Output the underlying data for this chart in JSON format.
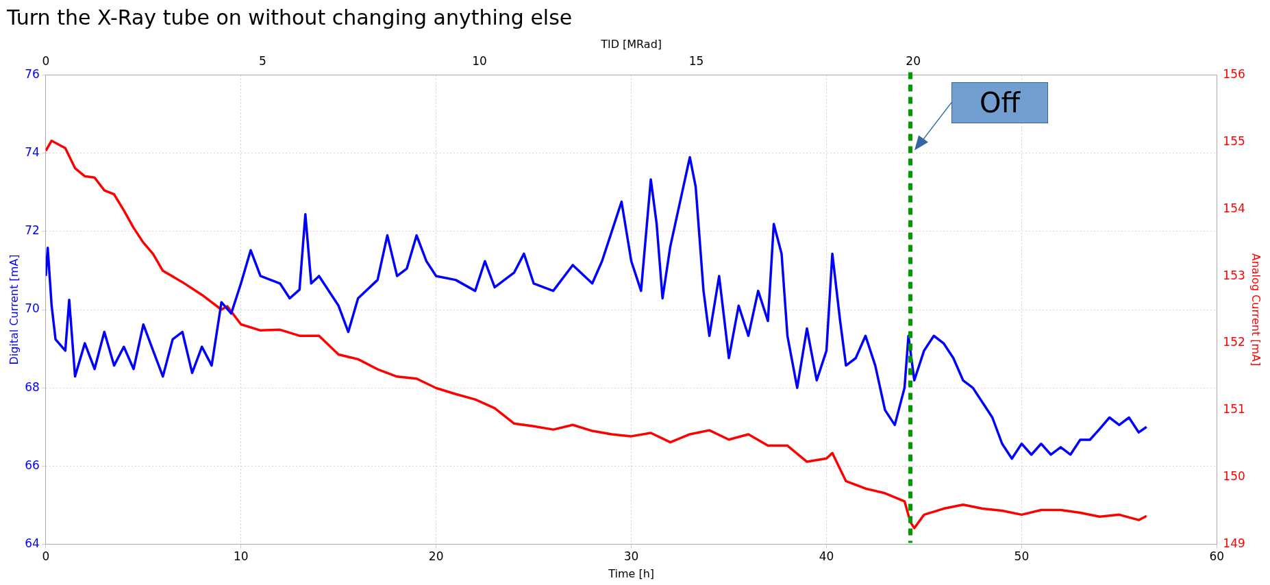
{
  "chart_data": {
    "type": "line",
    "title": "Turn the X-Ray tube on without changing anything else",
    "xlabel": "Time [h]",
    "x2label": "TID [MRad]",
    "ylabel": "Digital Current [mA]",
    "y2label": "Analog Current [mA]",
    "xlim": [
      0,
      60
    ],
    "xticks": [
      0,
      10,
      20,
      30,
      40,
      50,
      60
    ],
    "x2lim": [
      0,
      27
    ],
    "x2ticks": [
      0,
      5,
      10,
      15,
      20
    ],
    "ylim": [
      64,
      76
    ],
    "yticks": [
      64,
      66,
      68,
      70,
      72,
      74,
      76
    ],
    "y2lim": [
      149,
      156
    ],
    "y2ticks": [
      149,
      150,
      151,
      152,
      153,
      154,
      155,
      156
    ],
    "grid": true,
    "legend": false,
    "marker": "none",
    "line_style": "solid",
    "ref_lines": [
      {
        "axis": "x",
        "value": 44.3,
        "label": "Off",
        "color": "#009900",
        "line_style": "dashed"
      }
    ],
    "series": [
      {
        "color": "#0000ff",
        "axis": "y",
        "x": [
          0,
          0.1,
          0.3,
          0.5,
          1,
          1.2,
          1.5,
          2,
          2.5,
          3,
          3.5,
          4,
          4.5,
          5,
          5.5,
          6,
          6.5,
          7,
          7.5,
          8,
          8.5,
          9,
          9.5,
          10,
          10.5,
          11,
          12,
          12.5,
          13,
          13.3,
          13.6,
          14,
          15,
          15.5,
          16,
          17,
          17.5,
          18,
          18.5,
          19,
          19.5,
          20,
          21,
          22,
          22.5,
          23,
          24,
          24.5,
          25,
          26,
          27,
          28,
          28.5,
          29,
          29.5,
          30,
          30.5,
          31,
          31.3,
          31.6,
          32,
          33,
          33.3,
          33.7,
          34,
          34.5,
          35,
          35.5,
          36,
          36.5,
          37,
          37.3,
          37.7,
          38,
          38.5,
          39,
          39.5,
          40,
          40.3,
          40.7,
          41,
          41.5,
          42,
          42.5,
          43,
          43.5,
          44,
          44.2,
          44.5,
          45,
          45.5,
          46,
          46.5,
          47,
          47.5,
          48,
          48.5,
          49,
          49.5,
          50,
          50.5,
          51,
          51.5,
          52,
          52.5,
          53,
          53.5,
          54,
          54.5,
          55,
          55.5,
          56,
          56.4
        ],
        "values": [
          70.86,
          71.58,
          70.1,
          69.24,
          68.95,
          70.25,
          68.29,
          69.14,
          68.48,
          69.43,
          68.57,
          69.05,
          68.48,
          69.62,
          68.95,
          68.29,
          69.24,
          69.43,
          68.38,
          69.05,
          68.57,
          70.19,
          69.9,
          70.67,
          71.52,
          70.86,
          70.67,
          70.29,
          70.51,
          72.44,
          70.67,
          70.86,
          70.1,
          69.43,
          70.29,
          70.76,
          71.9,
          70.86,
          71.05,
          71.9,
          71.24,
          70.86,
          70.76,
          70.48,
          71.24,
          70.57,
          70.95,
          71.43,
          70.67,
          70.48,
          71.14,
          70.67,
          71.24,
          72.0,
          72.76,
          71.24,
          70.48,
          73.33,
          72.19,
          70.29,
          71.62,
          73.9,
          73.14,
          70.48,
          69.33,
          70.86,
          68.76,
          70.1,
          69.33,
          70.48,
          69.71,
          72.19,
          71.43,
          69.33,
          68.0,
          69.52,
          68.19,
          68.95,
          71.43,
          69.71,
          68.57,
          68.76,
          69.33,
          68.57,
          67.43,
          67.05,
          68.0,
          69.33,
          68.19,
          68.95,
          69.33,
          69.14,
          68.76,
          68.19,
          68.0,
          67.62,
          67.24,
          66.57,
          66.19,
          66.57,
          66.29,
          66.57,
          66.29,
          66.48,
          66.29,
          66.67,
          66.67,
          66.95,
          67.24,
          67.05,
          67.24,
          66.86,
          67.0
        ]
      },
      {
        "color": "#ff0000",
        "axis": "y2",
        "x": [
          0,
          0.3,
          1,
          1.5,
          2,
          2.5,
          3,
          3.5,
          4,
          4.5,
          5,
          5.5,
          6,
          7,
          8,
          9,
          9.3,
          10,
          11,
          12,
          13,
          14,
          15,
          16,
          17,
          18,
          19,
          20,
          21,
          22,
          23,
          24,
          25,
          26,
          27,
          28,
          29,
          30,
          31,
          32,
          33,
          34,
          35,
          36,
          37,
          38,
          39,
          40,
          40.3,
          41,
          42,
          43,
          44,
          44.3,
          44.5,
          45,
          46,
          47,
          48,
          49,
          50,
          51,
          52,
          53,
          54,
          55,
          56,
          56.4
        ],
        "values": [
          154.87,
          155.02,
          154.91,
          154.61,
          154.49,
          154.47,
          154.28,
          154.22,
          153.98,
          153.72,
          153.5,
          153.33,
          153.08,
          152.91,
          152.72,
          152.5,
          152.55,
          152.28,
          152.19,
          152.2,
          152.11,
          152.11,
          151.83,
          151.76,
          151.61,
          151.5,
          151.47,
          151.33,
          151.24,
          151.16,
          151.03,
          150.8,
          150.76,
          150.71,
          150.78,
          150.69,
          150.64,
          150.61,
          150.66,
          150.52,
          150.64,
          150.7,
          150.56,
          150.64,
          150.47,
          150.47,
          150.23,
          150.28,
          150.36,
          149.94,
          149.83,
          149.76,
          149.64,
          149.33,
          149.24,
          149.44,
          149.53,
          149.59,
          149.53,
          149.5,
          149.44,
          149.51,
          149.51,
          149.47,
          149.41,
          149.44,
          149.36,
          149.42
        ]
      }
    ]
  }
}
